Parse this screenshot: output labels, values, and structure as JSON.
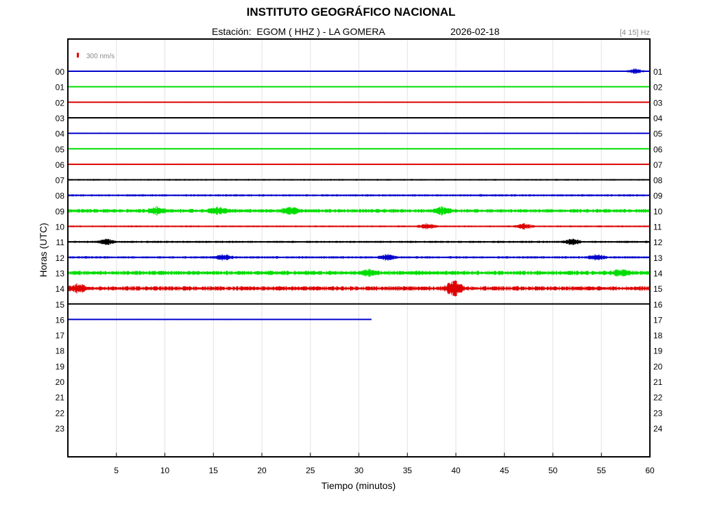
{
  "header": {
    "title": "INSTITUTO GEOGRÁFICO NACIONAL",
    "station_prefix": "Estación:",
    "station": "EGOM ( HHZ ) - LA GOMERA",
    "date": "2026-02-18",
    "band": "[4 15] Hz"
  },
  "chart_data": {
    "type": "line",
    "title": "INSTITUTO GEOGRÁFICO NACIONAL",
    "xlabel": "Tiempo (minutos)",
    "ylabel": "Horas (UTC)",
    "xlim": [
      0,
      60
    ],
    "x_ticks": [
      "5",
      "10",
      "15",
      "20",
      "25",
      "30",
      "35",
      "40",
      "45",
      "50",
      "55",
      "60"
    ],
    "left_hour_labels": [
      "00",
      "01",
      "02",
      "03",
      "04",
      "05",
      "06",
      "07",
      "08",
      "09",
      "10",
      "11",
      "12",
      "13",
      "14",
      "15",
      "16",
      "17",
      "18",
      "19",
      "20",
      "21",
      "22",
      "23"
    ],
    "right_hour_labels": [
      "01",
      "02",
      "03",
      "04",
      "05",
      "06",
      "07",
      "08",
      "09",
      "10",
      "11",
      "12",
      "13",
      "14",
      "15",
      "16",
      "17",
      "18",
      "19",
      "20",
      "21",
      "22",
      "23",
      "24"
    ],
    "scale_label": "300 nm/s",
    "scale_color": "#dd0000",
    "grid": true,
    "trace_colors": [
      "#0000cc",
      "#00dd00",
      "#dd0000",
      "#000000"
    ],
    "traces": [
      {
        "hour": "00",
        "end_minute": 60,
        "noise": 0.4,
        "bursts": [
          [
            58.5,
            3
          ]
        ]
      },
      {
        "hour": "01",
        "end_minute": 60,
        "noise": 0.3,
        "bursts": []
      },
      {
        "hour": "02",
        "end_minute": 60,
        "noise": 0.6,
        "bursts": []
      },
      {
        "hour": "03",
        "end_minute": 60,
        "noise": 0.3,
        "bursts": []
      },
      {
        "hour": "04",
        "end_minute": 60,
        "noise": 0.6,
        "bursts": []
      },
      {
        "hour": "05",
        "end_minute": 60,
        "noise": 0.3,
        "bursts": []
      },
      {
        "hour": "06",
        "end_minute": 60,
        "noise": 0.5,
        "bursts": []
      },
      {
        "hour": "07",
        "end_minute": 60,
        "noise": 0.9,
        "bursts": []
      },
      {
        "hour": "08",
        "end_minute": 60,
        "noise": 1.2,
        "bursts": []
      },
      {
        "hour": "09",
        "end_minute": 60,
        "noise": 2.0,
        "bursts": [
          [
            9.2,
            4
          ],
          [
            15.5,
            4
          ],
          [
            23,
            4
          ],
          [
            38.5,
            4
          ]
        ]
      },
      {
        "hour": "10",
        "end_minute": 60,
        "noise": 1.0,
        "bursts": [
          [
            37,
            3
          ],
          [
            47,
            3
          ]
        ]
      },
      {
        "hour": "11",
        "end_minute": 60,
        "noise": 1.2,
        "bursts": [
          [
            4,
            3
          ],
          [
            52,
            3
          ]
        ]
      },
      {
        "hour": "12",
        "end_minute": 60,
        "noise": 1.3,
        "bursts": [
          [
            16,
            3
          ],
          [
            33,
            3
          ],
          [
            54.5,
            3
          ]
        ]
      },
      {
        "hour": "13",
        "end_minute": 60,
        "noise": 2.3,
        "bursts": [
          [
            31,
            3
          ],
          [
            57,
            3
          ]
        ]
      },
      {
        "hour": "14",
        "end_minute": 60,
        "noise": 2.4,
        "bursts": [
          [
            1,
            4
          ],
          [
            39.8,
            8
          ]
        ]
      },
      {
        "hour": "15",
        "end_minute": 60,
        "noise": 0.5,
        "bursts": []
      },
      {
        "hour": "16",
        "end_minute": 31.3,
        "noise": 0.6,
        "bursts": []
      }
    ]
  }
}
